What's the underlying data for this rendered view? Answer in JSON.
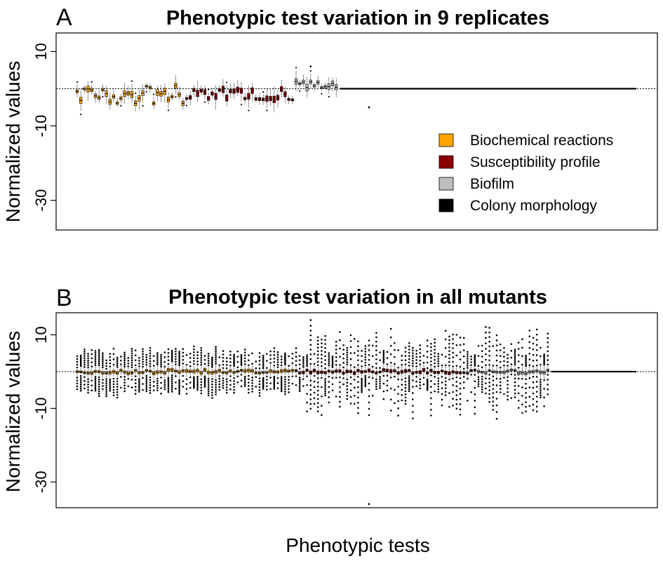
{
  "figure": {
    "xlabel": "Phenotypic tests"
  },
  "legend": [
    {
      "label": "Biochemical reactions",
      "color": "#FFA500"
    },
    {
      "label": "Susceptibility profile",
      "color": "#8B0000"
    },
    {
      "label": "Biofilm",
      "color": "#BEBEBE"
    },
    {
      "label": "Colony morphology",
      "color": "#000000"
    }
  ],
  "chart_data": [
    {
      "type": "box",
      "panel": "A",
      "title": "Phenotypic test variation in 9 replicates",
      "ylabel": "Normalized values",
      "ylim": [
        -38,
        15
      ],
      "yticks": [
        10,
        -10,
        -30
      ],
      "reference_line": 0,
      "groups": [
        {
          "category": "Biochemical reactions",
          "color": "#FFA500",
          "n_tests": 30,
          "median_range": [
            -4,
            1
          ]
        },
        {
          "category": "Susceptibility profile",
          "color": "#8B0000",
          "n_tests": 30,
          "median_range": [
            -3,
            0
          ]
        },
        {
          "category": "Biofilm",
          "color": "#BEBEBE",
          "n_tests": 12,
          "median_range": [
            0,
            2
          ],
          "max_outlier": 6
        }
      ],
      "outlier_extremes": {
        "max": 6,
        "min": -5
      }
    },
    {
      "type": "box",
      "panel": "B",
      "title": "Phenotypic test variation in all mutants",
      "ylabel": "Normalized values",
      "ylim": [
        -37,
        16
      ],
      "yticks": [
        10,
        -10,
        -30
      ],
      "reference_line": 0,
      "groups": [
        {
          "category": "Biochemical reactions",
          "color": "#FFA500",
          "n_tests": 60,
          "median_range": [
            -0.5,
            0.5
          ]
        },
        {
          "category": "Susceptibility profile",
          "color": "#8B0000",
          "n_tests": 50,
          "median_range": [
            -0.5,
            0.5
          ]
        },
        {
          "category": "Biofilm",
          "color": "#BEBEBE",
          "n_tests": 20,
          "median_range": [
            -0.5,
            0.5
          ]
        }
      ],
      "outlier_extremes": {
        "max": 14,
        "min": -36
      }
    }
  ]
}
